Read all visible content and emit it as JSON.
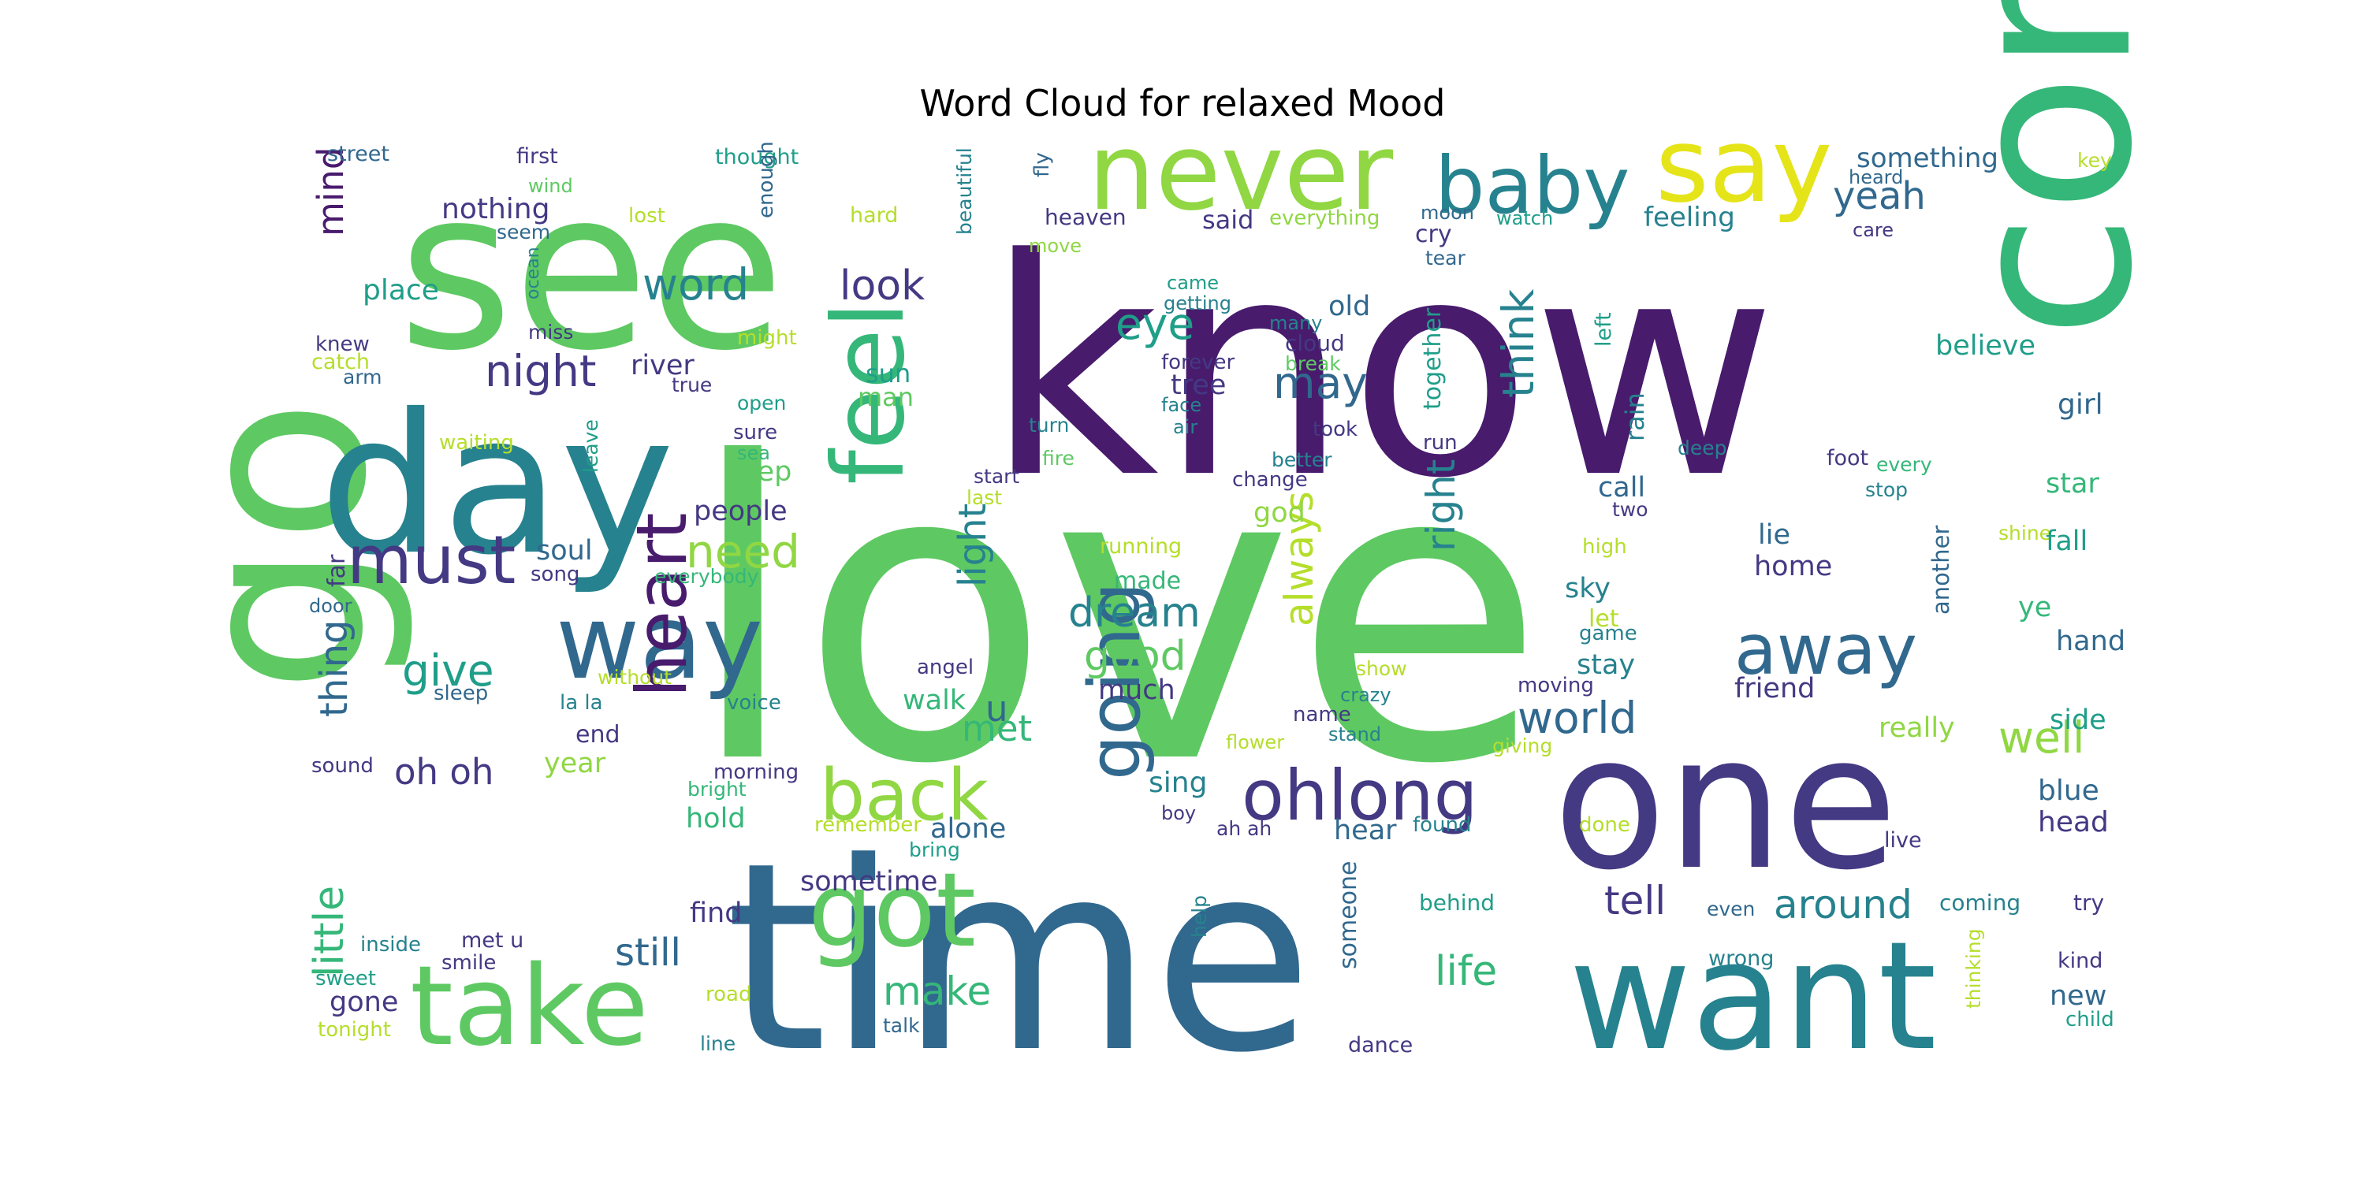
{
  "figure": {
    "title": "Word Cloud for relaxed Mood"
  },
  "palette": {
    "dark_purple": "#481b6d",
    "indigo": "#443983",
    "blue": "#31688e",
    "teal": "#26828e",
    "sea_green": "#1f9e89",
    "green": "#35b779",
    "bright_green": "#5ec962",
    "lime": "#90d743",
    "yellow_green": "#b5de2b",
    "yellow": "#e5e419"
  },
  "words": [
    {
      "text": "love",
      "color": "#5ec962"
    },
    {
      "text": "know",
      "color": "#481b6d"
    },
    {
      "text": "time",
      "color": "#31688e"
    },
    {
      "text": "see",
      "color": "#5ec962"
    },
    {
      "text": "go",
      "color": "#5ec962"
    },
    {
      "text": "come",
      "color": "#35b779"
    },
    {
      "text": "day",
      "color": "#26828e"
    },
    {
      "text": "one",
      "color": "#443983"
    },
    {
      "text": "want",
      "color": "#26828e"
    },
    {
      "text": "never",
      "color": "#90d743"
    },
    {
      "text": "say",
      "color": "#e5e419"
    },
    {
      "text": "baby",
      "color": "#26828e"
    },
    {
      "text": "way",
      "color": "#31688e"
    },
    {
      "text": "take",
      "color": "#5ec962"
    },
    {
      "text": "got",
      "color": "#5ec962"
    },
    {
      "text": "feel",
      "color": "#35b779"
    },
    {
      "text": "back",
      "color": "#90d743"
    },
    {
      "text": "heart",
      "color": "#481b6d"
    },
    {
      "text": "going",
      "color": "#31688e"
    },
    {
      "text": "must",
      "color": "#443983"
    },
    {
      "text": "ohlong",
      "color": "#443983"
    },
    {
      "text": "away",
      "color": "#31688e"
    },
    {
      "text": "night",
      "color": "#443983"
    },
    {
      "text": "word",
      "color": "#26828e"
    },
    {
      "text": "look",
      "color": "#443983"
    },
    {
      "text": "eye",
      "color": "#1f9e89"
    },
    {
      "text": "may",
      "color": "#31688e"
    },
    {
      "text": "think",
      "color": "#26828e"
    },
    {
      "text": "yeah",
      "color": "#31688e"
    },
    {
      "text": "mind",
      "color": "#481b6d"
    },
    {
      "text": "nothing",
      "color": "#443983"
    },
    {
      "text": "place",
      "color": "#1f9e89"
    },
    {
      "text": "need",
      "color": "#90d743"
    },
    {
      "text": "give",
      "color": "#1f9e89"
    },
    {
      "text": "light",
      "color": "#26828e"
    },
    {
      "text": "dream",
      "color": "#26828e"
    },
    {
      "text": "good",
      "color": "#5ec962"
    },
    {
      "text": "always",
      "color": "#b5de2b"
    },
    {
      "text": "right",
      "color": "#26828e"
    },
    {
      "text": "world",
      "color": "#31688e"
    },
    {
      "text": "well",
      "color": "#90d743"
    },
    {
      "text": "oh oh",
      "color": "#443983"
    },
    {
      "text": "met",
      "color": "#35b779"
    },
    {
      "text": "thing",
      "color": "#31688e"
    },
    {
      "text": "little",
      "color": "#35b779"
    },
    {
      "text": "still",
      "color": "#31688e"
    },
    {
      "text": "make",
      "color": "#35b779"
    },
    {
      "text": "life",
      "color": "#35b779"
    },
    {
      "text": "tell",
      "color": "#443983"
    },
    {
      "text": "around",
      "color": "#26828e"
    },
    {
      "text": "something",
      "color": "#31688e"
    },
    {
      "text": "feeling",
      "color": "#26828e"
    },
    {
      "text": "said",
      "color": "#443983"
    },
    {
      "text": "heaven",
      "color": "#443983"
    },
    {
      "text": "everything",
      "color": "#90d743"
    },
    {
      "text": "cry",
      "color": "#443983"
    },
    {
      "text": "thought",
      "color": "#1f9e89"
    },
    {
      "text": "first",
      "color": "#443983"
    },
    {
      "text": "street",
      "color": "#31688e"
    },
    {
      "text": "wind",
      "color": "#5ec962"
    },
    {
      "text": "lost",
      "color": "#b5de2b"
    },
    {
      "text": "hard",
      "color": "#b5de2b"
    },
    {
      "text": "seem",
      "color": "#31688e"
    },
    {
      "text": "enough",
      "color": "#31688e"
    },
    {
      "text": "beautiful",
      "color": "#26828e"
    },
    {
      "text": "fly",
      "color": "#31688e"
    },
    {
      "text": "move",
      "color": "#90d743"
    },
    {
      "text": "moon",
      "color": "#31688e"
    },
    {
      "text": "watch",
      "color": "#1f9e89"
    },
    {
      "text": "heard",
      "color": "#31688e"
    },
    {
      "text": "care",
      "color": "#443983"
    },
    {
      "text": "key",
      "color": "#b5de2b"
    },
    {
      "text": "tear",
      "color": "#31688e"
    },
    {
      "text": "old",
      "color": "#31688e"
    },
    {
      "text": "came",
      "color": "#1f9e89"
    },
    {
      "text": "getting",
      "color": "#26828e"
    },
    {
      "text": "many",
      "color": "#26828e"
    },
    {
      "text": "cloud",
      "color": "#443983"
    },
    {
      "text": "forever",
      "color": "#443983"
    },
    {
      "text": "break",
      "color": "#5ec962"
    },
    {
      "text": "face",
      "color": "#26828e"
    },
    {
      "text": "tree",
      "color": "#443983"
    },
    {
      "text": "together",
      "color": "#1f9e89"
    },
    {
      "text": "left",
      "color": "#1f9e89"
    },
    {
      "text": "believe",
      "color": "#1f9e89"
    },
    {
      "text": "girl",
      "color": "#31688e"
    },
    {
      "text": "rain",
      "color": "#26828e"
    },
    {
      "text": "ocean",
      "color": "#26828e"
    },
    {
      "text": "miss",
      "color": "#443983"
    },
    {
      "text": "might",
      "color": "#b5de2b"
    },
    {
      "text": "knew",
      "color": "#443983"
    },
    {
      "text": "catch",
      "color": "#b5de2b"
    },
    {
      "text": "arm",
      "color": "#31688e"
    },
    {
      "text": "river",
      "color": "#443983"
    },
    {
      "text": "true",
      "color": "#443983"
    },
    {
      "text": "sun",
      "color": "#1f9e89"
    },
    {
      "text": "man",
      "color": "#5ec962"
    },
    {
      "text": "open",
      "color": "#1f9e89"
    },
    {
      "text": "turn",
      "color": "#26828e"
    },
    {
      "text": "air",
      "color": "#26828e"
    },
    {
      "text": "took",
      "color": "#443983"
    },
    {
      "text": "fire",
      "color": "#5ec962"
    },
    {
      "text": "better",
      "color": "#26828e"
    },
    {
      "text": "run",
      "color": "#443983"
    },
    {
      "text": "deep",
      "color": "#26828e"
    },
    {
      "text": "foot",
      "color": "#443983"
    },
    {
      "text": "every",
      "color": "#35b779"
    },
    {
      "text": "stop",
      "color": "#26828e"
    },
    {
      "text": "star",
      "color": "#35b779"
    },
    {
      "text": "waiting",
      "color": "#b5de2b"
    },
    {
      "text": "leave",
      "color": "#1f9e89"
    },
    {
      "text": "sure",
      "color": "#443983"
    },
    {
      "text": "sea",
      "color": "#35b779"
    },
    {
      "text": "keep",
      "color": "#5ec962"
    },
    {
      "text": "start",
      "color": "#443983"
    },
    {
      "text": "last",
      "color": "#b5de2b"
    },
    {
      "text": "change",
      "color": "#443983"
    },
    {
      "text": "god",
      "color": "#90d743"
    },
    {
      "text": "call",
      "color": "#31688e"
    },
    {
      "text": "two",
      "color": "#443983"
    },
    {
      "text": "lie",
      "color": "#31688e"
    },
    {
      "text": "people",
      "color": "#443983"
    },
    {
      "text": "soul",
      "color": "#31688e"
    },
    {
      "text": "song",
      "color": "#443983"
    },
    {
      "text": "everybody",
      "color": "#35b779"
    },
    {
      "text": "running",
      "color": "#b5de2b"
    },
    {
      "text": "made",
      "color": "#35b779"
    },
    {
      "text": "high",
      "color": "#b5de2b"
    },
    {
      "text": "home",
      "color": "#443983"
    },
    {
      "text": "shine",
      "color": "#b5de2b"
    },
    {
      "text": "fall",
      "color": "#1f9e89"
    },
    {
      "text": "another",
      "color": "#31688e"
    },
    {
      "text": "far",
      "color": "#443983"
    },
    {
      "text": "door",
      "color": "#31688e"
    },
    {
      "text": "sky",
      "color": "#26828e"
    },
    {
      "text": "let",
      "color": "#b5de2b"
    },
    {
      "text": "game",
      "color": "#26828e"
    },
    {
      "text": "ye",
      "color": "#35b779"
    },
    {
      "text": "hand",
      "color": "#31688e"
    },
    {
      "text": "without",
      "color": "#b5de2b"
    },
    {
      "text": "angel",
      "color": "#443983"
    },
    {
      "text": "show",
      "color": "#b5de2b"
    },
    {
      "text": "crazy",
      "color": "#26828e"
    },
    {
      "text": "name",
      "color": "#443983"
    },
    {
      "text": "moving",
      "color": "#443983"
    },
    {
      "text": "stay",
      "color": "#26828e"
    },
    {
      "text": "friend",
      "color": "#443983"
    },
    {
      "text": "sleep",
      "color": "#31688e"
    },
    {
      "text": "la la",
      "color": "#26828e"
    },
    {
      "text": "voice",
      "color": "#26828e"
    },
    {
      "text": "much",
      "color": "#443983"
    },
    {
      "text": "walk",
      "color": "#35b779"
    },
    {
      "text": "u",
      "color": "#31688e"
    },
    {
      "text": "end",
      "color": "#443983"
    },
    {
      "text": "year",
      "color": "#90d743"
    },
    {
      "text": "flower",
      "color": "#b5de2b"
    },
    {
      "text": "stand",
      "color": "#26828e"
    },
    {
      "text": "giving",
      "color": "#b5de2b"
    },
    {
      "text": "really",
      "color": "#90d743"
    },
    {
      "text": "side",
      "color": "#1f9e89"
    },
    {
      "text": "sound",
      "color": "#443983"
    },
    {
      "text": "morning",
      "color": "#443983"
    },
    {
      "text": "bright",
      "color": "#35b779"
    },
    {
      "text": "sing",
      "color": "#26828e"
    },
    {
      "text": "boy",
      "color": "#443983"
    },
    {
      "text": "blue",
      "color": "#31688e"
    },
    {
      "text": "head",
      "color": "#443983"
    },
    {
      "text": "hold",
      "color": "#35b779"
    },
    {
      "text": "remember",
      "color": "#b5de2b"
    },
    {
      "text": "alone",
      "color": "#31688e"
    },
    {
      "text": "ah ah",
      "color": "#443983"
    },
    {
      "text": "hear",
      "color": "#31688e"
    },
    {
      "text": "found",
      "color": "#26828e"
    },
    {
      "text": "done",
      "color": "#b5de2b"
    },
    {
      "text": "bring",
      "color": "#1f9e89"
    },
    {
      "text": "live",
      "color": "#443983"
    },
    {
      "text": "sometime",
      "color": "#443983"
    },
    {
      "text": "find",
      "color": "#443983"
    },
    {
      "text": "someone",
      "color": "#31688e"
    },
    {
      "text": "behind",
      "color": "#1f9e89"
    },
    {
      "text": "even",
      "color": "#31688e"
    },
    {
      "text": "coming",
      "color": "#26828e"
    },
    {
      "text": "try",
      "color": "#443983"
    },
    {
      "text": "help",
      "color": "#26828e"
    },
    {
      "text": "inside",
      "color": "#26828e"
    },
    {
      "text": "met u",
      "color": "#443983"
    },
    {
      "text": "smile",
      "color": "#443983"
    },
    {
      "text": "sweet",
      "color": "#1f9e89"
    },
    {
      "text": "gone",
      "color": "#443983"
    },
    {
      "text": "road",
      "color": "#b5de2b"
    },
    {
      "text": "wrong",
      "color": "#26828e"
    },
    {
      "text": "kind",
      "color": "#443983"
    },
    {
      "text": "new",
      "color": "#31688e"
    },
    {
      "text": "child",
      "color": "#1f9e89"
    },
    {
      "text": "thinking",
      "color": "#b5de2b"
    },
    {
      "text": "tonight",
      "color": "#b5de2b"
    },
    {
      "text": "talk",
      "color": "#31688e"
    },
    {
      "text": "line",
      "color": "#26828e"
    },
    {
      "text": "dance",
      "color": "#443983"
    }
  ]
}
